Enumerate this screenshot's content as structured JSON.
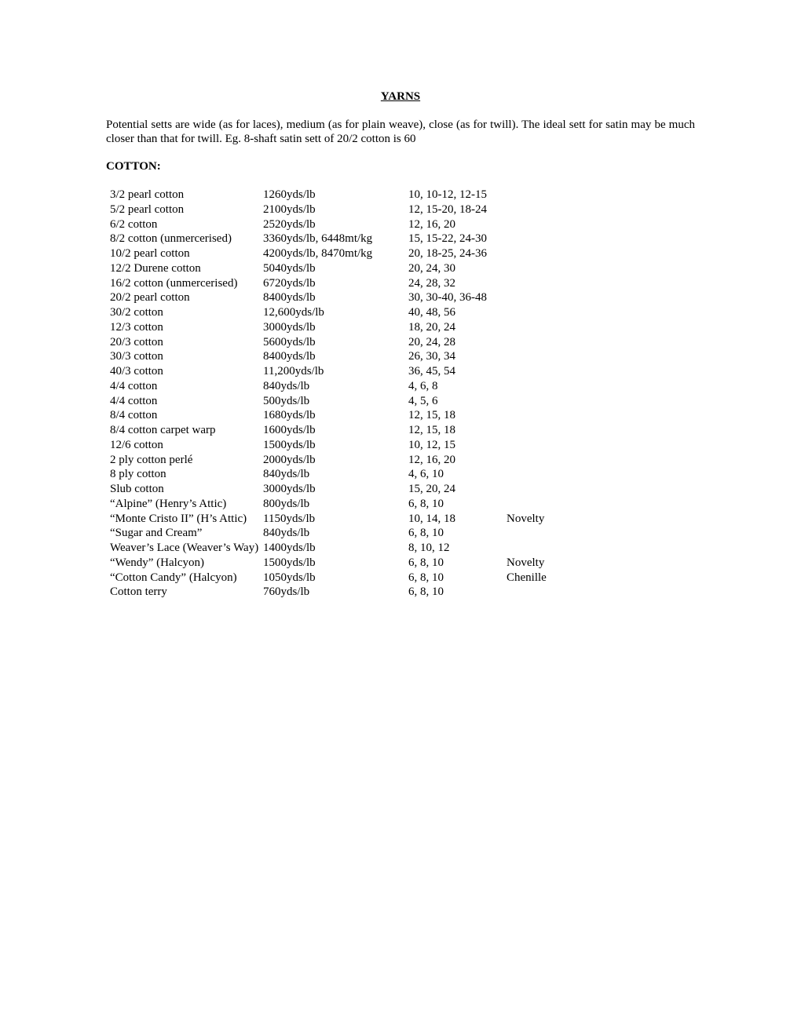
{
  "title": "YARNS",
  "intro": "Potential setts are wide (as for laces), medium (as for plain weave), close (as for twill). The ideal sett for satin may be much closer than that for twill. Eg. 8-shaft satin sett of 20/2 cotton is 60",
  "section": "COTTON:",
  "rows": [
    {
      "name": "3/2 pearl cotton",
      "yds": "1260yds/lb",
      "sett": "10, 10-12, 12-15",
      "note": ""
    },
    {
      "name": "5/2 pearl cotton",
      "yds": "2100yds/lb",
      "sett": "12, 15-20, 18-24",
      "note": ""
    },
    {
      "name": "6/2 cotton",
      "yds": "2520yds/lb",
      "sett": "12, 16, 20",
      "note": ""
    },
    {
      "name": "8/2 cotton (unmercerised)",
      "yds": "3360yds/lb,  6448mt/kg",
      "sett": "15, 15-22, 24-30",
      "note": ""
    },
    {
      "name": "10/2 pearl cotton",
      "yds": "4200yds/lb,  8470mt/kg",
      "sett": "20, 18-25, 24-36",
      "note": ""
    },
    {
      "name": "12/2 Durene cotton",
      "yds": "5040yds/lb",
      "sett": "20, 24, 30",
      "note": ""
    },
    {
      "name": "16/2 cotton (unmercerised)",
      "yds": "6720yds/lb",
      "sett": "24, 28, 32",
      "note": ""
    },
    {
      "name": "20/2 pearl cotton",
      "yds": "8400yds/lb",
      "sett": "30, 30-40, 36-48",
      "note": ""
    },
    {
      "name": "30/2 cotton",
      "yds": "12,600yds/lb",
      "sett": "40, 48, 56",
      "note": ""
    },
    {
      "name": "12/3 cotton",
      "yds": "3000yds/lb",
      "sett": "18, 20, 24",
      "note": ""
    },
    {
      "name": "20/3 cotton",
      "yds": "5600yds/lb",
      "sett": "20, 24, 28",
      "note": ""
    },
    {
      "name": "30/3 cotton",
      "yds": "8400yds/lb",
      "sett": "26, 30, 34",
      "note": ""
    },
    {
      "name": "40/3 cotton",
      "yds": "11,200yds/lb",
      "sett": "36, 45, 54",
      "note": ""
    },
    {
      "name": "4/4 cotton",
      "yds": "840yds/lb",
      "sett": "4, 6, 8",
      "note": ""
    },
    {
      "name": "4/4 cotton",
      "yds": "500yds/lb",
      "sett": "4, 5, 6",
      "note": ""
    },
    {
      "name": "8/4 cotton",
      "yds": "1680yds/lb",
      "sett": "12, 15, 18",
      "note": ""
    },
    {
      "name": "8/4 cotton carpet warp",
      "yds": "1600yds/lb",
      "sett": "12, 15, 18",
      "note": ""
    },
    {
      "name": "12/6 cotton",
      "yds": "1500yds/lb",
      "sett": "10, 12, 15",
      "note": ""
    },
    {
      "name": "2 ply cotton perlé",
      "yds": "2000yds/lb",
      "sett": "12, 16, 20",
      "note": ""
    },
    {
      "name": "8 ply cotton",
      "yds": "840yds/lb",
      "sett": "4, 6, 10",
      "note": ""
    },
    {
      "name": "Slub cotton",
      "yds": "3000yds/lb",
      "sett": "15, 20, 24",
      "note": ""
    },
    {
      "name": "“Alpine” (Henry’s Attic)",
      "yds": "800yds/lb",
      "sett": "6, 8, 10",
      "note": ""
    },
    {
      "name": "“Monte Cristo II” (H’s Attic)",
      "yds": "1150yds/lb",
      "sett": "10, 14, 18",
      "note": "Novelty"
    },
    {
      "name": "“Sugar and Cream”",
      "yds": "840yds/lb",
      "sett": "6, 8, 10",
      "note": ""
    },
    {
      "name": "Weaver’s Lace (Weaver’s Way)",
      "yds": "1400yds/lb",
      "sett": "8, 10, 12",
      "note": ""
    },
    {
      "name": "“Wendy” (Halcyon)",
      "yds": "1500yds/lb",
      "sett": "6, 8, 10",
      "note": "Novelty"
    },
    {
      "name": "“Cotton Candy” (Halcyon)",
      "yds": "1050yds/lb",
      "sett": "6, 8, 10",
      "note": "Chenille"
    },
    {
      "name": "Cotton terry",
      "yds": "760yds/lb",
      "sett": "6, 8, 10",
      "note": ""
    }
  ]
}
